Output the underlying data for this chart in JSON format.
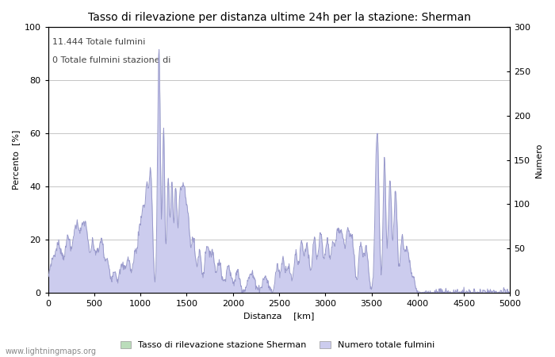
{
  "title": "Tasso di rilevazione per distanza ultime 24h per la stazione: Sherman",
  "xlabel": "Distanza  [km]",
  "ylabel_left": "Percento  [%]",
  "ylabel_right": "Numero",
  "annotation_line1": "11.444 Totale fulmini",
  "annotation_line2": "0 Totale fulmini stazione di",
  "xlim": [
    0,
    5000
  ],
  "ylim_left": [
    0,
    100
  ],
  "ylim_right": [
    0,
    300
  ],
  "xticks": [
    0,
    500,
    1000,
    1500,
    2000,
    2500,
    3000,
    3500,
    4000,
    4500,
    5000
  ],
  "yticks_left": [
    0,
    20,
    40,
    60,
    80,
    100
  ],
  "yticks_right": [
    0,
    50,
    100,
    150,
    200,
    250,
    300
  ],
  "line_color": "#9999cc",
  "fill_blue_color": "#ccccee",
  "fill_green_color": "#bbddbb",
  "bg_color": "#ffffff",
  "grid_color": "#bbbbbb",
  "legend_label_green": "Tasso di rilevazione stazione Sherman",
  "legend_label_blue": "Numero totale fulmini",
  "watermark": "www.lightningmaps.org",
  "title_fontsize": 10,
  "axis_label_fontsize": 8,
  "tick_fontsize": 8,
  "annotation_fontsize": 8,
  "legend_fontsize": 8
}
